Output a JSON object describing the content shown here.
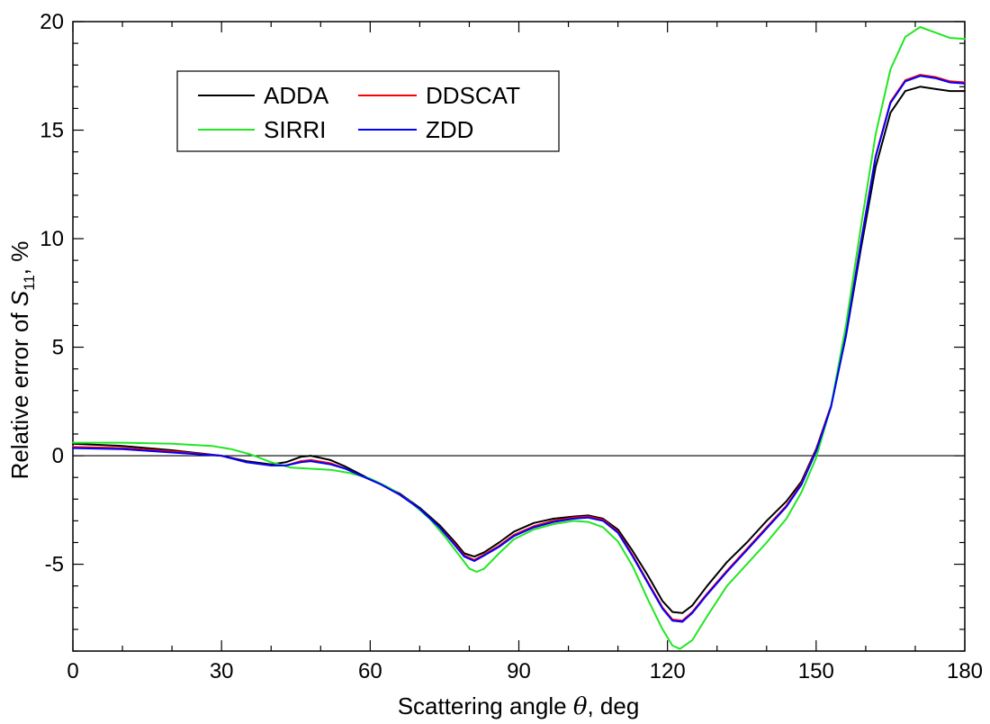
{
  "chart_data": {
    "type": "line",
    "title": "",
    "xlabel": "Scattering angle θ, deg",
    "xlabel_parts": {
      "pre": "Scattering angle ",
      "sym": "θ",
      "post": ", deg"
    },
    "ylabel": "Relative error of S11, %",
    "ylabel_parts": {
      "pre": "Relative error of ",
      "sym": "S",
      "sub": "11",
      "post": ", %"
    },
    "xlim": [
      0,
      180
    ],
    "ylim": [
      -9,
      20
    ],
    "x_ticks": [
      0,
      30,
      60,
      90,
      120,
      150,
      180
    ],
    "x_tick_labels": [
      "0",
      "30",
      "60",
      "90",
      "120",
      "150",
      "180"
    ],
    "y_ticks": [
      -5,
      0,
      5,
      10,
      15,
      20
    ],
    "y_tick_labels": [
      "-5",
      "0",
      "5",
      "10",
      "15",
      "20"
    ],
    "x_minor_step": 10,
    "y_minor_step": 1,
    "reference_line_y": 0,
    "grid": false,
    "legend_position": "top-left",
    "series": [
      {
        "name": "ADDA",
        "color": "#000000",
        "points": [
          [
            0,
            0.55
          ],
          [
            10,
            0.45
          ],
          [
            20,
            0.25
          ],
          [
            30,
            0.0
          ],
          [
            35,
            -0.25
          ],
          [
            40,
            -0.4
          ],
          [
            43,
            -0.3
          ],
          [
            46,
            -0.05
          ],
          [
            48,
            0.0
          ],
          [
            52,
            -0.2
          ],
          [
            55,
            -0.5
          ],
          [
            58,
            -0.85
          ],
          [
            62,
            -1.3
          ],
          [
            66,
            -1.75
          ],
          [
            70,
            -2.4
          ],
          [
            74,
            -3.2
          ],
          [
            77,
            -3.95
          ],
          [
            79,
            -4.5
          ],
          [
            81,
            -4.65
          ],
          [
            83,
            -4.45
          ],
          [
            86,
            -4.0
          ],
          [
            89,
            -3.5
          ],
          [
            93,
            -3.1
          ],
          [
            97,
            -2.9
          ],
          [
            101,
            -2.8
          ],
          [
            104,
            -2.75
          ],
          [
            107,
            -2.9
          ],
          [
            110,
            -3.4
          ],
          [
            113,
            -4.4
          ],
          [
            116,
            -5.5
          ],
          [
            119,
            -6.7
          ],
          [
            121,
            -7.2
          ],
          [
            123,
            -7.25
          ],
          [
            125,
            -6.9
          ],
          [
            128,
            -6.0
          ],
          [
            132,
            -4.9
          ],
          [
            136,
            -4.0
          ],
          [
            140,
            -3.0
          ],
          [
            144,
            -2.1
          ],
          [
            147,
            -1.2
          ],
          [
            150,
            0.3
          ],
          [
            153,
            2.3
          ],
          [
            156,
            5.5
          ],
          [
            159,
            9.5
          ],
          [
            162,
            13.3
          ],
          [
            165,
            15.8
          ],
          [
            168,
            16.8
          ],
          [
            171,
            17.0
          ],
          [
            174,
            16.9
          ],
          [
            177,
            16.8
          ],
          [
            180,
            16.8
          ]
        ]
      },
      {
        "name": "DDSCAT",
        "color": "#ff0000",
        "points": [
          [
            0,
            0.4
          ],
          [
            10,
            0.35
          ],
          [
            20,
            0.2
          ],
          [
            30,
            0.0
          ],
          [
            35,
            -0.3
          ],
          [
            40,
            -0.45
          ],
          [
            43,
            -0.45
          ],
          [
            46,
            -0.25
          ],
          [
            48,
            -0.2
          ],
          [
            52,
            -0.35
          ],
          [
            55,
            -0.6
          ],
          [
            58,
            -0.9
          ],
          [
            62,
            -1.3
          ],
          [
            66,
            -1.8
          ],
          [
            70,
            -2.45
          ],
          [
            74,
            -3.3
          ],
          [
            77,
            -4.05
          ],
          [
            79,
            -4.6
          ],
          [
            81,
            -4.8
          ],
          [
            83,
            -4.55
          ],
          [
            86,
            -4.15
          ],
          [
            89,
            -3.65
          ],
          [
            93,
            -3.25
          ],
          [
            97,
            -3.0
          ],
          [
            101,
            -2.85
          ],
          [
            104,
            -2.8
          ],
          [
            107,
            -2.95
          ],
          [
            110,
            -3.5
          ],
          [
            113,
            -4.6
          ],
          [
            116,
            -5.8
          ],
          [
            119,
            -7.0
          ],
          [
            121,
            -7.55
          ],
          [
            123,
            -7.6
          ],
          [
            125,
            -7.2
          ],
          [
            128,
            -6.35
          ],
          [
            132,
            -5.3
          ],
          [
            136,
            -4.3
          ],
          [
            140,
            -3.3
          ],
          [
            144,
            -2.3
          ],
          [
            147,
            -1.3
          ],
          [
            150,
            0.25
          ],
          [
            153,
            2.3
          ],
          [
            156,
            5.6
          ],
          [
            159,
            9.8
          ],
          [
            162,
            13.8
          ],
          [
            165,
            16.3
          ],
          [
            168,
            17.3
          ],
          [
            171,
            17.55
          ],
          [
            174,
            17.45
          ],
          [
            177,
            17.25
          ],
          [
            180,
            17.2
          ]
        ]
      },
      {
        "name": "SIRRI",
        "color": "#22e622",
        "points": [
          [
            0,
            0.6
          ],
          [
            10,
            0.6
          ],
          [
            20,
            0.55
          ],
          [
            28,
            0.45
          ],
          [
            32,
            0.3
          ],
          [
            36,
            0.05
          ],
          [
            40,
            -0.3
          ],
          [
            44,
            -0.55
          ],
          [
            48,
            -0.6
          ],
          [
            52,
            -0.65
          ],
          [
            56,
            -0.8
          ],
          [
            60,
            -1.05
          ],
          [
            64,
            -1.5
          ],
          [
            68,
            -2.1
          ],
          [
            72,
            -2.9
          ],
          [
            75,
            -3.7
          ],
          [
            78,
            -4.6
          ],
          [
            80,
            -5.2
          ],
          [
            81.5,
            -5.35
          ],
          [
            83,
            -5.2
          ],
          [
            86,
            -4.5
          ],
          [
            89,
            -3.85
          ],
          [
            93,
            -3.4
          ],
          [
            97,
            -3.15
          ],
          [
            101,
            -3.0
          ],
          [
            104,
            -3.05
          ],
          [
            107,
            -3.3
          ],
          [
            110,
            -3.95
          ],
          [
            113,
            -5.1
          ],
          [
            116,
            -6.6
          ],
          [
            119,
            -8.0
          ],
          [
            121,
            -8.75
          ],
          [
            122.5,
            -8.9
          ],
          [
            125,
            -8.5
          ],
          [
            128,
            -7.4
          ],
          [
            132,
            -6.0
          ],
          [
            136,
            -5.0
          ],
          [
            140,
            -4.0
          ],
          [
            144,
            -2.9
          ],
          [
            147,
            -1.7
          ],
          [
            150,
            -0.1
          ],
          [
            153,
            2.3
          ],
          [
            156,
            6.0
          ],
          [
            159,
            10.5
          ],
          [
            162,
            14.8
          ],
          [
            165,
            17.8
          ],
          [
            168,
            19.3
          ],
          [
            171,
            19.75
          ],
          [
            174,
            19.5
          ],
          [
            177,
            19.25
          ],
          [
            180,
            19.2
          ]
        ]
      },
      {
        "name": "ZDD",
        "color": "#0000ff",
        "points": [
          [
            0,
            0.35
          ],
          [
            10,
            0.3
          ],
          [
            20,
            0.15
          ],
          [
            30,
            0.0
          ],
          [
            35,
            -0.3
          ],
          [
            40,
            -0.45
          ],
          [
            43,
            -0.45
          ],
          [
            46,
            -0.3
          ],
          [
            48,
            -0.25
          ],
          [
            52,
            -0.4
          ],
          [
            55,
            -0.6
          ],
          [
            58,
            -0.9
          ],
          [
            62,
            -1.3
          ],
          [
            66,
            -1.8
          ],
          [
            70,
            -2.45
          ],
          [
            74,
            -3.3
          ],
          [
            77,
            -4.1
          ],
          [
            79,
            -4.65
          ],
          [
            81,
            -4.85
          ],
          [
            83,
            -4.6
          ],
          [
            86,
            -4.2
          ],
          [
            89,
            -3.7
          ],
          [
            93,
            -3.3
          ],
          [
            97,
            -3.05
          ],
          [
            101,
            -2.9
          ],
          [
            104,
            -2.85
          ],
          [
            107,
            -3.0
          ],
          [
            110,
            -3.55
          ],
          [
            113,
            -4.65
          ],
          [
            116,
            -5.85
          ],
          [
            119,
            -7.05
          ],
          [
            121,
            -7.6
          ],
          [
            123,
            -7.65
          ],
          [
            125,
            -7.25
          ],
          [
            128,
            -6.4
          ],
          [
            132,
            -5.35
          ],
          [
            136,
            -4.35
          ],
          [
            140,
            -3.35
          ],
          [
            144,
            -2.35
          ],
          [
            147,
            -1.35
          ],
          [
            150,
            0.2
          ],
          [
            153,
            2.25
          ],
          [
            156,
            5.55
          ],
          [
            159,
            9.75
          ],
          [
            162,
            13.75
          ],
          [
            165,
            16.25
          ],
          [
            168,
            17.25
          ],
          [
            171,
            17.5
          ],
          [
            174,
            17.4
          ],
          [
            177,
            17.2
          ],
          [
            180,
            17.15
          ]
        ]
      }
    ]
  }
}
